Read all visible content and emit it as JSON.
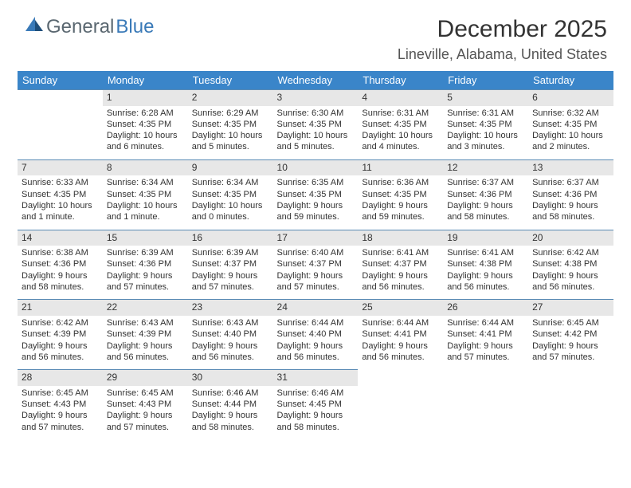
{
  "logo": {
    "general": "General",
    "blue": "Blue"
  },
  "title": "December 2025",
  "location": "Lineville, Alabama, United States",
  "headers": [
    "Sunday",
    "Monday",
    "Tuesday",
    "Wednesday",
    "Thursday",
    "Friday",
    "Saturday"
  ],
  "colors": {
    "header_bg": "#3a85c9",
    "header_fg": "#ffffff",
    "daynum_bg": "#e7e7e7",
    "row_border": "#5a8bb5",
    "logo_blue": "#3a7ab8",
    "logo_grey": "#5a6770"
  },
  "first_weekday_offset": 1,
  "days": [
    {
      "n": 1,
      "sunrise": "6:28 AM",
      "sunset": "4:35 PM",
      "daylight": "10 hours and 6 minutes."
    },
    {
      "n": 2,
      "sunrise": "6:29 AM",
      "sunset": "4:35 PM",
      "daylight": "10 hours and 5 minutes."
    },
    {
      "n": 3,
      "sunrise": "6:30 AM",
      "sunset": "4:35 PM",
      "daylight": "10 hours and 5 minutes."
    },
    {
      "n": 4,
      "sunrise": "6:31 AM",
      "sunset": "4:35 PM",
      "daylight": "10 hours and 4 minutes."
    },
    {
      "n": 5,
      "sunrise": "6:31 AM",
      "sunset": "4:35 PM",
      "daylight": "10 hours and 3 minutes."
    },
    {
      "n": 6,
      "sunrise": "6:32 AM",
      "sunset": "4:35 PM",
      "daylight": "10 hours and 2 minutes."
    },
    {
      "n": 7,
      "sunrise": "6:33 AM",
      "sunset": "4:35 PM",
      "daylight": "10 hours and 1 minute."
    },
    {
      "n": 8,
      "sunrise": "6:34 AM",
      "sunset": "4:35 PM",
      "daylight": "10 hours and 1 minute."
    },
    {
      "n": 9,
      "sunrise": "6:34 AM",
      "sunset": "4:35 PM",
      "daylight": "10 hours and 0 minutes."
    },
    {
      "n": 10,
      "sunrise": "6:35 AM",
      "sunset": "4:35 PM",
      "daylight": "9 hours and 59 minutes."
    },
    {
      "n": 11,
      "sunrise": "6:36 AM",
      "sunset": "4:35 PM",
      "daylight": "9 hours and 59 minutes."
    },
    {
      "n": 12,
      "sunrise": "6:37 AM",
      "sunset": "4:36 PM",
      "daylight": "9 hours and 58 minutes."
    },
    {
      "n": 13,
      "sunrise": "6:37 AM",
      "sunset": "4:36 PM",
      "daylight": "9 hours and 58 minutes."
    },
    {
      "n": 14,
      "sunrise": "6:38 AM",
      "sunset": "4:36 PM",
      "daylight": "9 hours and 58 minutes."
    },
    {
      "n": 15,
      "sunrise": "6:39 AM",
      "sunset": "4:36 PM",
      "daylight": "9 hours and 57 minutes."
    },
    {
      "n": 16,
      "sunrise": "6:39 AM",
      "sunset": "4:37 PM",
      "daylight": "9 hours and 57 minutes."
    },
    {
      "n": 17,
      "sunrise": "6:40 AM",
      "sunset": "4:37 PM",
      "daylight": "9 hours and 57 minutes."
    },
    {
      "n": 18,
      "sunrise": "6:41 AM",
      "sunset": "4:37 PM",
      "daylight": "9 hours and 56 minutes."
    },
    {
      "n": 19,
      "sunrise": "6:41 AM",
      "sunset": "4:38 PM",
      "daylight": "9 hours and 56 minutes."
    },
    {
      "n": 20,
      "sunrise": "6:42 AM",
      "sunset": "4:38 PM",
      "daylight": "9 hours and 56 minutes."
    },
    {
      "n": 21,
      "sunrise": "6:42 AM",
      "sunset": "4:39 PM",
      "daylight": "9 hours and 56 minutes."
    },
    {
      "n": 22,
      "sunrise": "6:43 AM",
      "sunset": "4:39 PM",
      "daylight": "9 hours and 56 minutes."
    },
    {
      "n": 23,
      "sunrise": "6:43 AM",
      "sunset": "4:40 PM",
      "daylight": "9 hours and 56 minutes."
    },
    {
      "n": 24,
      "sunrise": "6:44 AM",
      "sunset": "4:40 PM",
      "daylight": "9 hours and 56 minutes."
    },
    {
      "n": 25,
      "sunrise": "6:44 AM",
      "sunset": "4:41 PM",
      "daylight": "9 hours and 56 minutes."
    },
    {
      "n": 26,
      "sunrise": "6:44 AM",
      "sunset": "4:41 PM",
      "daylight": "9 hours and 57 minutes."
    },
    {
      "n": 27,
      "sunrise": "6:45 AM",
      "sunset": "4:42 PM",
      "daylight": "9 hours and 57 minutes."
    },
    {
      "n": 28,
      "sunrise": "6:45 AM",
      "sunset": "4:43 PM",
      "daylight": "9 hours and 57 minutes."
    },
    {
      "n": 29,
      "sunrise": "6:45 AM",
      "sunset": "4:43 PM",
      "daylight": "9 hours and 57 minutes."
    },
    {
      "n": 30,
      "sunrise": "6:46 AM",
      "sunset": "4:44 PM",
      "daylight": "9 hours and 58 minutes."
    },
    {
      "n": 31,
      "sunrise": "6:46 AM",
      "sunset": "4:45 PM",
      "daylight": "9 hours and 58 minutes."
    }
  ],
  "labels": {
    "sunrise": "Sunrise:",
    "sunset": "Sunset:",
    "daylight": "Daylight:"
  }
}
